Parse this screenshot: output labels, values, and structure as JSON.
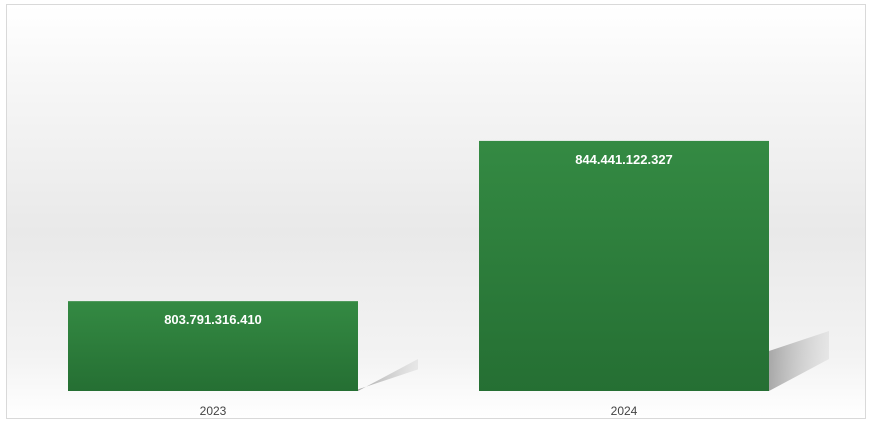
{
  "chart_data": {
    "type": "bar",
    "categories": [
      "2023",
      "2024"
    ],
    "values": [
      803791316410,
      844441122327
    ],
    "data_labels": [
      "803.791.316.410",
      "844.441.122.327"
    ],
    "ylim": [
      781000000000,
      850000000000
    ],
    "bar_color": "#2d7d3c",
    "grid": false,
    "legend": "none"
  }
}
